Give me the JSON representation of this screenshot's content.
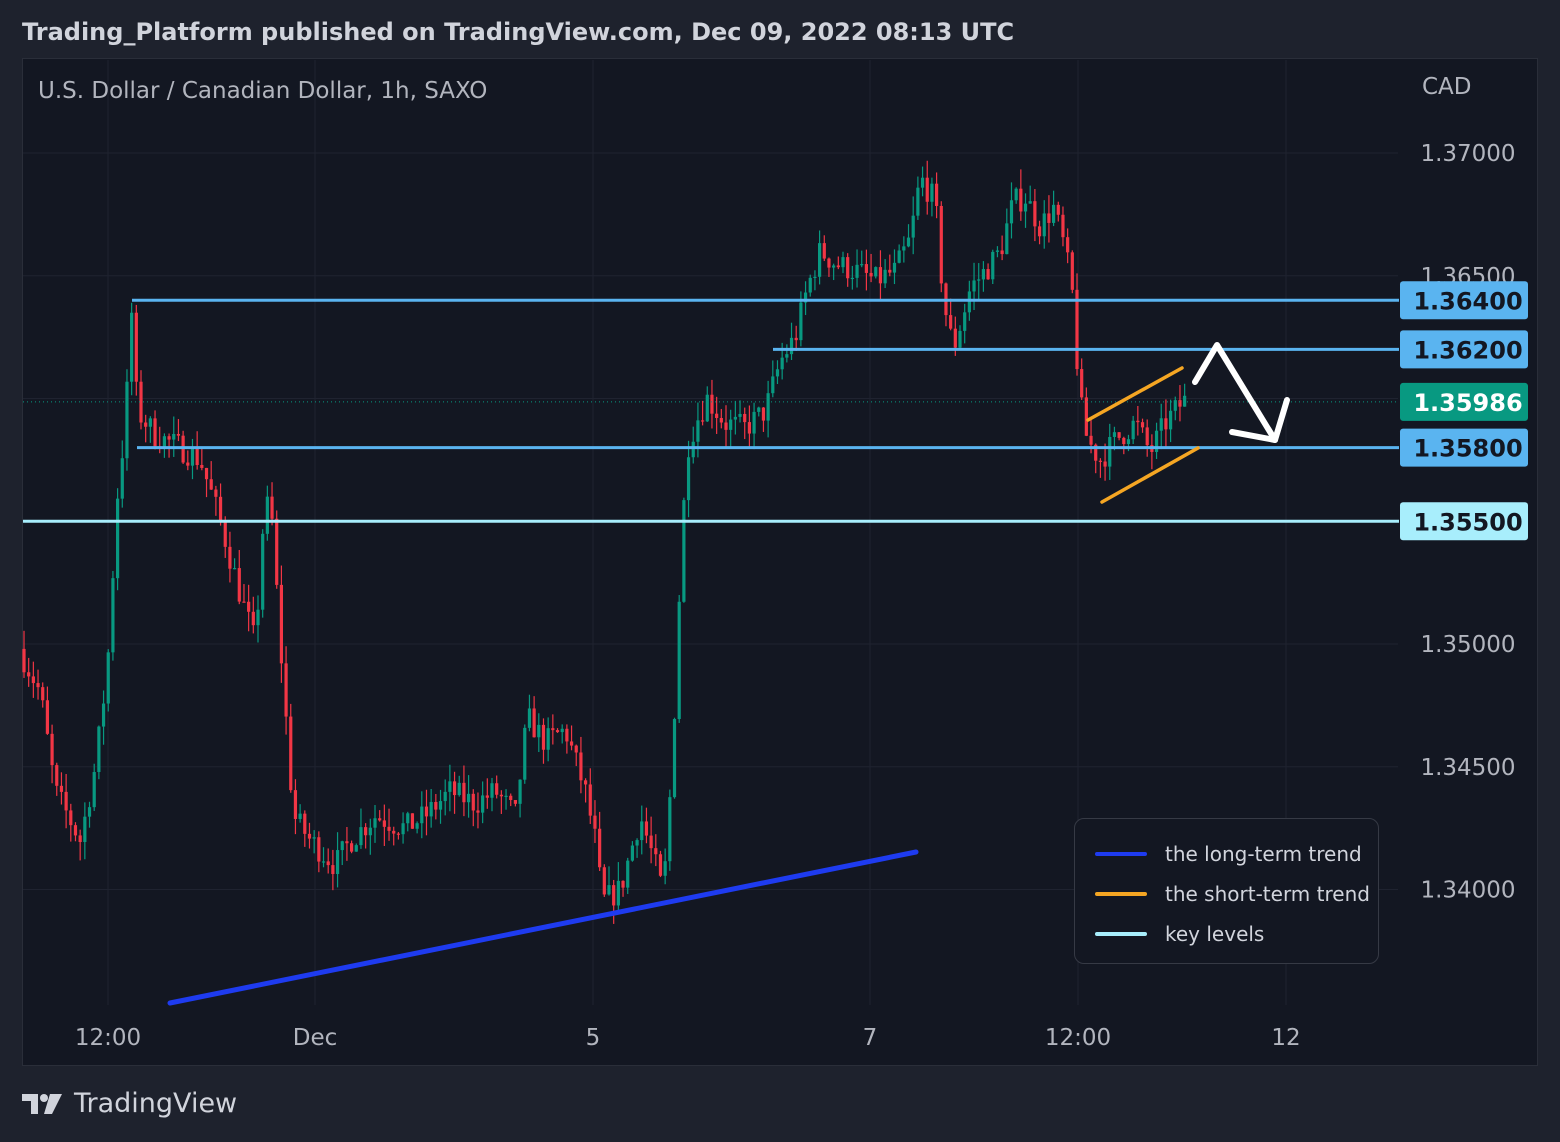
{
  "header": {
    "published": "Trading_Platform published on TradingView.com, Dec 09, 2022 08:13 UTC"
  },
  "chart": {
    "symbol": "U.S. Dollar / Canadian Dollar, 1h, SAXO",
    "currency": "CAD"
  },
  "chart_data": {
    "type": "candlestick",
    "y_axis": {
      "ticks": [
        "1.37000",
        "1.36500",
        "1.35000",
        "1.34500",
        "1.34000"
      ],
      "ylim": [
        1.3355,
        1.3725
      ]
    },
    "x_axis": {
      "ticks": [
        "12:00",
        "Dec",
        "5",
        "7",
        "12:00",
        "12"
      ]
    },
    "current_price": {
      "value": "1.35986",
      "color": "#089981"
    },
    "key_levels": [
      {
        "label": "1.36400",
        "value": 1.364,
        "color": "#5ab4f0"
      },
      {
        "label": "1.36200",
        "value": 1.362,
        "color": "#5ab4f0"
      },
      {
        "label": "1.35800",
        "value": 1.358,
        "color": "#5ab4f0"
      },
      {
        "label": "1.35500",
        "value": 1.355,
        "color": "#a8eefc"
      }
    ],
    "legend": [
      {
        "label": "the long-term trend",
        "color": "#1e3bf0"
      },
      {
        "label": "the short-term trend",
        "color": "#f5a623"
      },
      {
        "label": "key levels",
        "color": "#a8eefc"
      }
    ],
    "colors": {
      "up": "#089981",
      "down": "#f23645"
    }
  },
  "branding": {
    "logo": "TradingView"
  }
}
